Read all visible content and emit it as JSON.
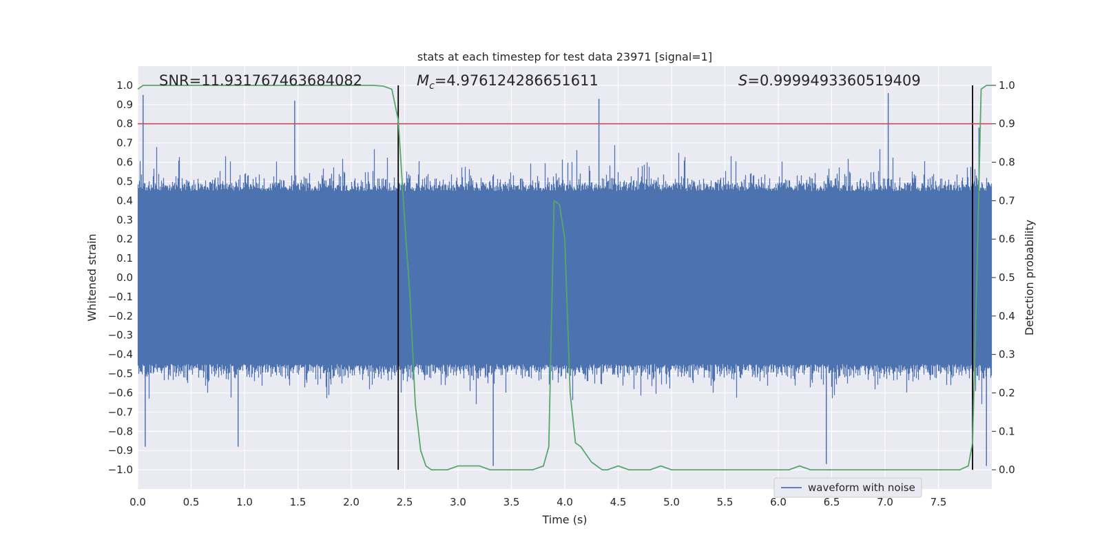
{
  "chart_data": {
    "type": "line",
    "title": "stats at each timestep for test data 23971 [signal=1]",
    "xlabel": "Time (s)",
    "ylabel_left": "Whitened strain",
    "ylabel_right": "Detection probability",
    "xlim": [
      0.0,
      8.0
    ],
    "ylim_left": [
      -1.1,
      1.1
    ],
    "ylim_right": [
      -0.05,
      1.05
    ],
    "x_ticks": [
      "0.0",
      "0.5",
      "1.0",
      "1.5",
      "2.0",
      "2.5",
      "3.0",
      "3.5",
      "4.0",
      "4.5",
      "5.0",
      "5.5",
      "6.0",
      "6.5",
      "7.0",
      "7.5"
    ],
    "x_tick_values": [
      0.0,
      0.5,
      1.0,
      1.5,
      2.0,
      2.5,
      3.0,
      3.5,
      4.0,
      4.5,
      5.0,
      5.5,
      6.0,
      6.5,
      7.0,
      7.5
    ],
    "y_left_ticks": [
      "1.0",
      "0.9",
      "0.8",
      "0.7",
      "0.6",
      "0.5",
      "0.4",
      "0.3",
      "0.2",
      "0.1",
      "0.0",
      "−0.1",
      "−0.2",
      "−0.3",
      "−0.4",
      "−0.5",
      "−0.6",
      "−0.7",
      "−0.8",
      "−0.9",
      "−1.0"
    ],
    "y_left_tick_values": [
      1.0,
      0.9,
      0.8,
      0.7,
      0.6,
      0.5,
      0.4,
      0.3,
      0.2,
      0.1,
      0.0,
      -0.1,
      -0.2,
      -0.3,
      -0.4,
      -0.5,
      -0.6,
      -0.7,
      -0.8,
      -0.9,
      -1.0
    ],
    "y_right_ticks": [
      "1.0",
      "0.9",
      "0.8",
      "0.7",
      "0.6",
      "0.5",
      "0.4",
      "0.3",
      "0.2",
      "0.1",
      "0.0"
    ],
    "y_right_tick_values": [
      1.0,
      0.9,
      0.8,
      0.7,
      0.6,
      0.5,
      0.4,
      0.3,
      0.2,
      0.1,
      0.0
    ],
    "grid": true,
    "legend": {
      "position": "lower-right",
      "entries": [
        "waveform with noise"
      ]
    },
    "annotations": {
      "snr": "SNR=11.931767463684082",
      "mc_symbol": "M",
      "mc_subscript": "c",
      "mc_value": "=4.976124286651611",
      "s_symbol": "S",
      "s_value": "=0.9999493360519409"
    },
    "vertical_lines_x": [
      2.44,
      7.82
    ],
    "threshold_probability": 0.9,
    "series": [
      {
        "name": "waveform with noise",
        "axis": "left",
        "color": "#4c72b0",
        "kind": "noise-band",
        "envelope_typical": 0.45,
        "peaks": [
          {
            "x": 0.05,
            "y": 0.95
          },
          {
            "x": 0.07,
            "y": -0.88
          },
          {
            "x": 0.94,
            "y": -0.88
          },
          {
            "x": 1.47,
            "y": 0.92
          },
          {
            "x": 3.33,
            "y": -0.98
          },
          {
            "x": 4.32,
            "y": 0.93
          },
          {
            "x": 6.45,
            "y": -0.97
          },
          {
            "x": 7.03,
            "y": 0.96
          },
          {
            "x": 7.88,
            "y": 0.78
          },
          {
            "x": 7.95,
            "y": -0.98
          }
        ]
      },
      {
        "name": "detection probability",
        "axis": "right",
        "color": "#55a868",
        "x": [
          0.0,
          0.05,
          0.1,
          0.3,
          0.6,
          0.9,
          1.2,
          1.5,
          1.8,
          2.0,
          2.1,
          2.2,
          2.3,
          2.38,
          2.44,
          2.5,
          2.55,
          2.6,
          2.65,
          2.7,
          2.75,
          2.8,
          2.9,
          3.0,
          3.1,
          3.2,
          3.3,
          3.4,
          3.5,
          3.6,
          3.7,
          3.8,
          3.85,
          3.9,
          3.95,
          4.0,
          4.05,
          4.1,
          4.15,
          4.2,
          4.25,
          4.3,
          4.35,
          4.4,
          4.5,
          4.6,
          4.7,
          4.8,
          4.9,
          5.0,
          5.1,
          5.2,
          5.3,
          5.4,
          5.5,
          5.6,
          5.7,
          5.8,
          5.9,
          6.0,
          6.1,
          6.2,
          6.3,
          6.4,
          6.5,
          6.6,
          6.7,
          6.8,
          6.9,
          7.0,
          7.1,
          7.2,
          7.3,
          7.4,
          7.5,
          7.6,
          7.7,
          7.78,
          7.82,
          7.86,
          7.9,
          7.95,
          8.0
        ],
        "y": [
          0.99,
          1.0,
          1.0,
          1.0,
          1.0,
          1.0,
          1.0,
          1.0,
          1.0,
          1.0,
          1.0,
          1.0,
          0.998,
          0.99,
          0.91,
          0.65,
          0.45,
          0.17,
          0.05,
          0.01,
          0.0,
          0.0,
          0.0,
          0.01,
          0.01,
          0.01,
          0.0,
          0.0,
          0.0,
          0.0,
          0.0,
          0.01,
          0.06,
          0.7,
          0.69,
          0.6,
          0.2,
          0.07,
          0.06,
          0.04,
          0.02,
          0.01,
          0.0,
          0.0,
          0.01,
          0.0,
          0.0,
          0.0,
          0.01,
          0.0,
          0.0,
          0.0,
          0.0,
          0.0,
          0.0,
          0.0,
          0.0,
          0.0,
          0.0,
          0.0,
          0.0,
          0.01,
          0.0,
          0.0,
          0.0,
          0.0,
          0.0,
          0.0,
          0.0,
          0.0,
          0.0,
          0.0,
          0.0,
          0.0,
          0.0,
          0.0,
          0.0,
          0.01,
          0.07,
          0.5,
          0.99,
          1.0,
          1.0
        ]
      }
    ]
  }
}
